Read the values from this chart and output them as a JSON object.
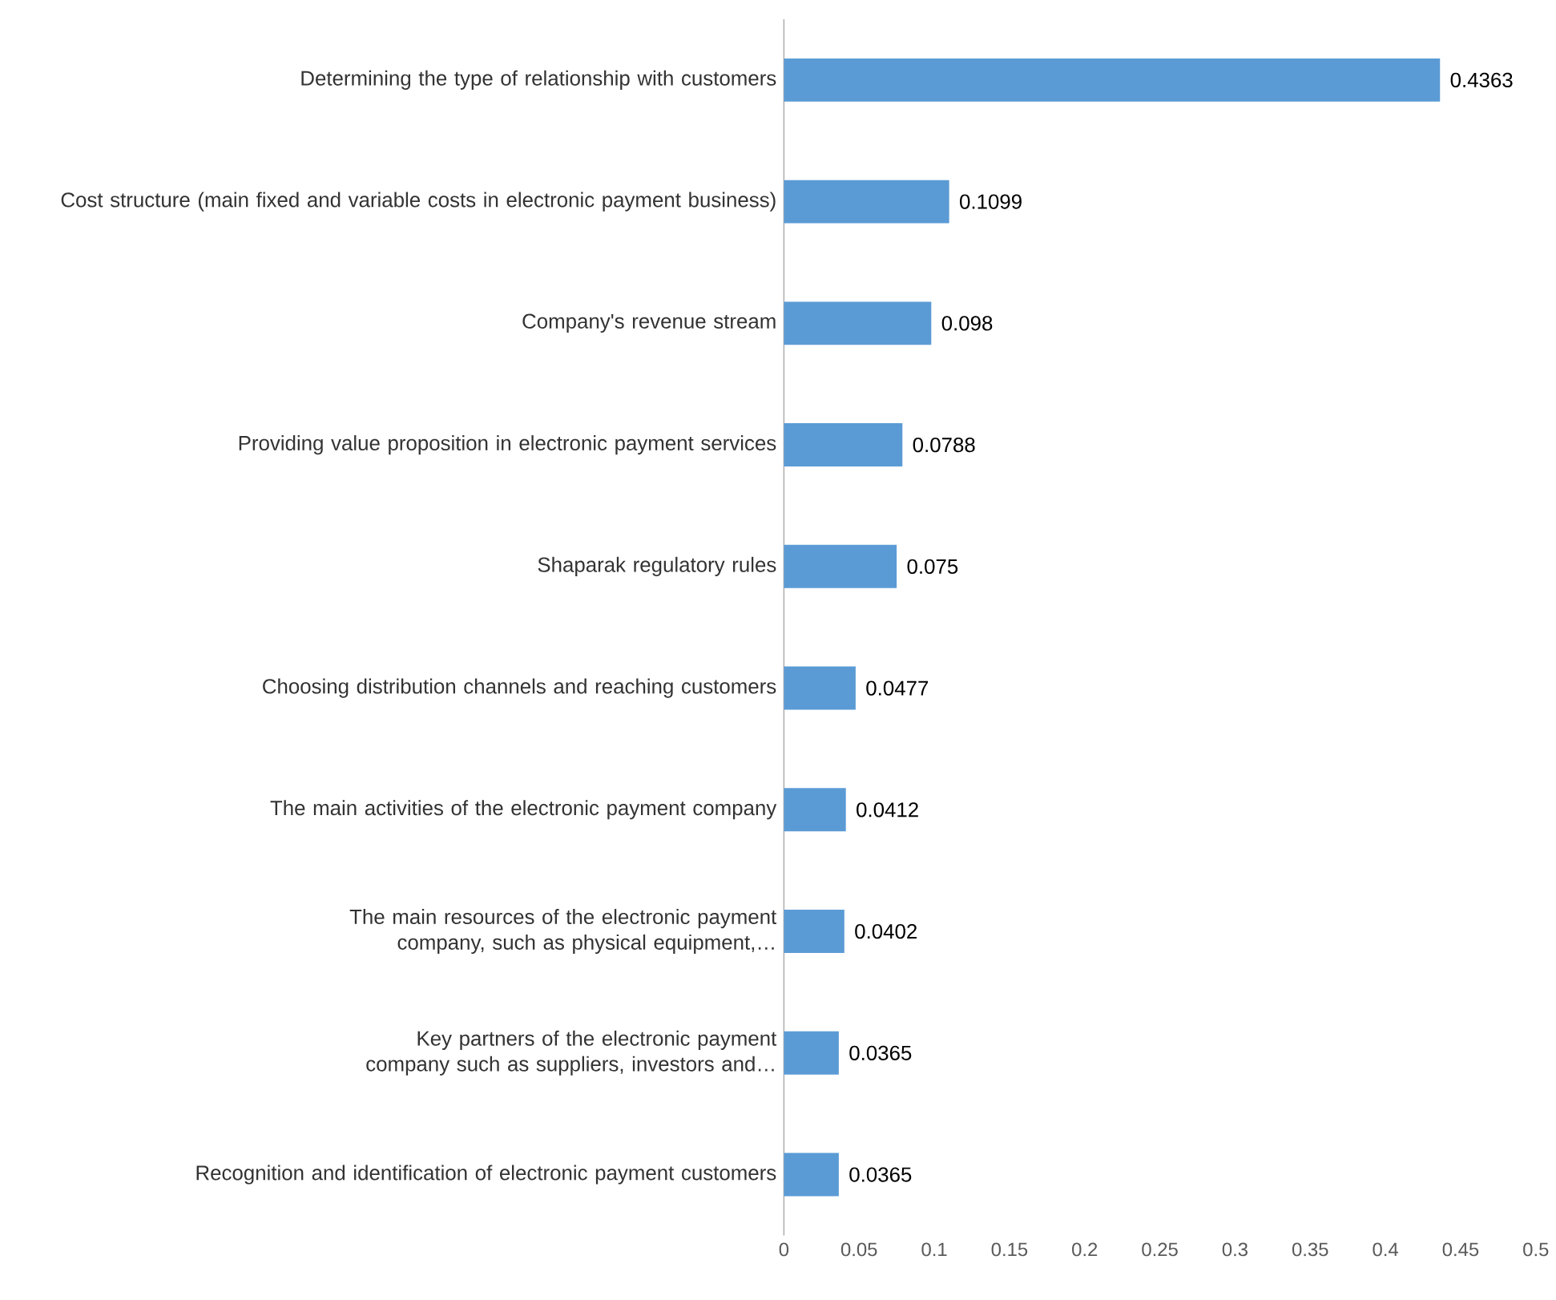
{
  "chart_data": {
    "type": "bar",
    "orientation": "horizontal",
    "categories": [
      "Determining the type of relationship with customers",
      "Cost structure (main fixed and variable costs in electronic payment business)",
      "Company's revenue stream",
      "Providing value proposition in electronic payment services",
      "Shaparak regulatory rules",
      "Choosing distribution channels and reaching customers",
      "The main activities of the electronic payment company",
      "The main resources of the electronic payment company, such as physical equipment,…",
      "Key partners of the electronic payment company such as suppliers, investors and…",
      "Recognition and identification of electronic payment customers"
    ],
    "values": [
      0.4363,
      0.1099,
      0.098,
      0.0788,
      0.075,
      0.0477,
      0.0412,
      0.0402,
      0.0365,
      0.0365
    ],
    "color": "#5b9bd5",
    "data_labels": true,
    "xlim": [
      0,
      0.5
    ],
    "xticks": [
      0,
      0.05,
      0.1,
      0.15,
      0.2,
      0.25,
      0.3,
      0.35,
      0.4,
      0.45,
      0.5
    ]
  }
}
